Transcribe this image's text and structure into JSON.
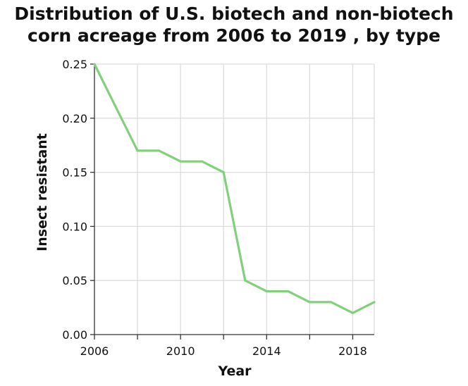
{
  "chart_data": {
    "type": "line",
    "title_lines": [
      "Distribution of U.S. biotech and non-biotech",
      "corn acreage from 2006 to 2019 , by type"
    ],
    "xlabel": "Year",
    "ylabel": "Insect resistant",
    "xlim": [
      2006,
      2019
    ],
    "ylim": [
      0,
      0.25
    ],
    "x_ticks": [
      2006,
      2008,
      2010,
      2012,
      2014,
      2016,
      2018
    ],
    "x_tick_labels": [
      "2006",
      "2010",
      "2014",
      "2018"
    ],
    "x_tick_label_values": [
      2006,
      2010,
      2014,
      2018
    ],
    "y_ticks": [
      0,
      0.05,
      0.1,
      0.15,
      0.2,
      0.25
    ],
    "y_tick_labels": [
      "0.00",
      "0.05",
      "0.10",
      "0.15",
      "0.20",
      "0.25"
    ],
    "grid": true,
    "line_color": "#80d17a",
    "series": [
      {
        "x": [
          2006,
          2008,
          2009,
          2010,
          2011,
          2012,
          2013,
          2014,
          2015,
          2016,
          2017,
          2018,
          2019
        ],
        "values": [
          0.25,
          0.17,
          0.17,
          0.16,
          0.16,
          0.15,
          0.05,
          0.04,
          0.04,
          0.03,
          0.03,
          0.02,
          0.03
        ]
      }
    ]
  }
}
